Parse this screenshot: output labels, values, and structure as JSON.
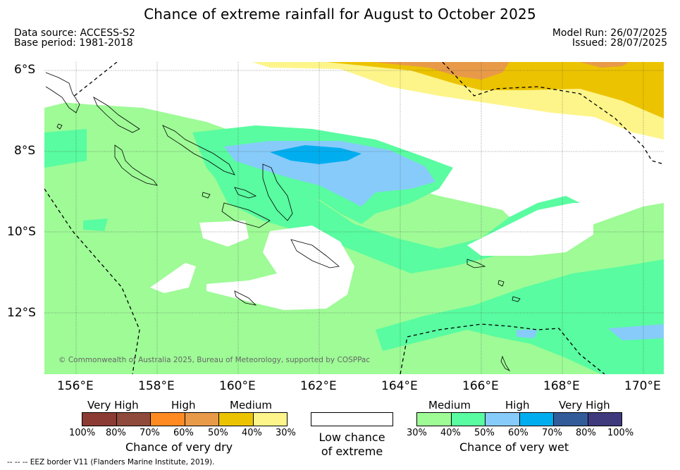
{
  "title": "Chance of extreme rainfall for August to October 2025",
  "meta": {
    "data_source": "Data source: ACCESS-S2",
    "base_period": "Base period: 1981-2018",
    "model_run": "Model Run: 26/07/2025",
    "issued": "Issued: 28/07/2025"
  },
  "map": {
    "lat_labels": [
      "6°S",
      "8°S",
      "10°S",
      "12°S"
    ],
    "lon_labels": [
      "156°E",
      "158°E",
      "160°E",
      "162°E",
      "164°E",
      "166°E",
      "168°E",
      "170°E"
    ],
    "copyright": "© Commonwealth of Australia 2025, Bureau of Meteorology, supported by COSPPac"
  },
  "legend_dry": {
    "category_labels": [
      "Very High",
      "High",
      "Medium"
    ],
    "ticks": [
      "100%",
      "80%",
      "70%",
      "60%",
      "50%",
      "40%",
      "30%"
    ],
    "title": "Chance of very dry",
    "colors": [
      "#8b3a34",
      "#8f4a3b",
      "#ff8a22",
      "#e89a48",
      "#ecc300",
      "#fdf58a"
    ]
  },
  "legend_low": {
    "line1": "Low chance",
    "line2": "of extreme",
    "color": "#ffffff"
  },
  "legend_wet": {
    "category_labels": [
      "Medium",
      "High",
      "Very High"
    ],
    "ticks": [
      "30%",
      "40%",
      "50%",
      "60%",
      "70%",
      "80%",
      "100%"
    ],
    "title": "Chance of very wet",
    "colors": [
      "#9efb96",
      "#59fca0",
      "#87cbfa",
      "#00aef0",
      "#325b9a",
      "#3f397d"
    ]
  },
  "footer": "--  --  -- EEZ border V11 (Flanders Marine Institute, 2019)."
}
